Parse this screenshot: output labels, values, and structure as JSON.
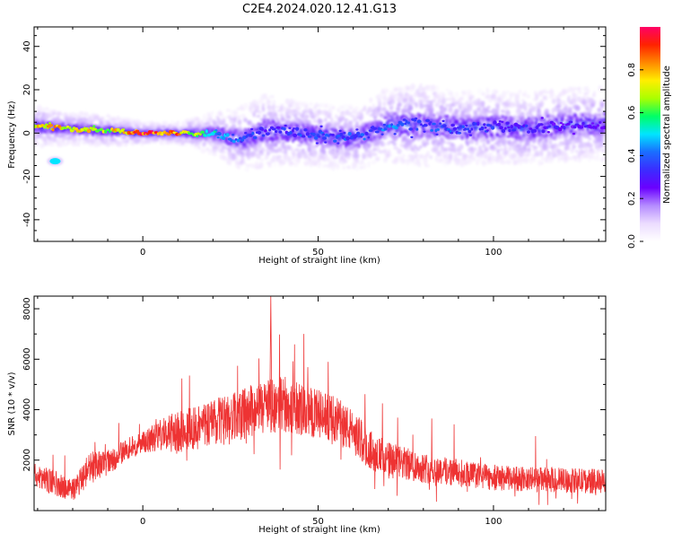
{
  "figure_title": "C2E4.2024.020.12.41.G13",
  "colors": {
    "snr_line": "#ee3333",
    "colormap": [
      "#ffffff",
      "#ecdcff",
      "#b58cff",
      "#6a00ff",
      "#3b2cff",
      "#1a6dff",
      "#00e5ff",
      "#00ff66",
      "#aaff00",
      "#ffee00",
      "#ff8800",
      "#ff2200",
      "#ff0066"
    ]
  },
  "chart_data": [
    {
      "type": "heatmap",
      "title": "",
      "xlabel": "Height of straight line (km)",
      "ylabel": "Frequency (Hz)",
      "xlim": [
        -31,
        132
      ],
      "ylim": [
        -50,
        49
      ],
      "xticks": [
        0,
        50,
        100
      ],
      "yticks": [
        -40,
        -20,
        0,
        20,
        40
      ],
      "colorbar": {
        "label": "Normalized spectral amplitude",
        "range": [
          0.0,
          1.0
        ],
        "ticks": [
          0.0,
          0.2,
          0.4,
          0.6,
          0.8
        ]
      },
      "ridge": {
        "x": [
          -31,
          -20,
          -10,
          0,
          10,
          20,
          28,
          35,
          45,
          55,
          62,
          70,
          80,
          90,
          100,
          110,
          120,
          132
        ],
        "frequency": [
          3,
          2,
          1,
          0,
          0,
          0,
          -3,
          1,
          0,
          -2,
          -2,
          4,
          4,
          2,
          3,
          2,
          4,
          4
        ],
        "peak_amplitude": [
          0.85,
          0.8,
          0.75,
          1.0,
          0.9,
          0.55,
          0.4,
          0.35,
          0.4,
          0.4,
          0.4,
          0.45,
          0.4,
          0.4,
          0.35,
          0.35,
          0.3,
          0.3
        ],
        "spread_hz": [
          4,
          3,
          3,
          2,
          2,
          4,
          6,
          7,
          6,
          6,
          6,
          7,
          8,
          7,
          7,
          7,
          7,
          7
        ]
      },
      "blobs": [
        {
          "x": -25,
          "frequency": -13,
          "amplitude": 0.5
        }
      ]
    },
    {
      "type": "line",
      "title": "",
      "xlabel": "Height of straight line (km)",
      "ylabel": "SNR (10 * v/v)",
      "xlim": [
        -31,
        132
      ],
      "ylim": [
        0,
        8500
      ],
      "xticks": [
        0,
        50,
        100
      ],
      "yticks": [
        2000,
        4000,
        6000,
        8000
      ],
      "series": [
        {
          "x": [
            -31,
            -25,
            -20,
            -15,
            -10,
            -5,
            0,
            5,
            10,
            15,
            20,
            25,
            30,
            35,
            40,
            45,
            50,
            55,
            60,
            65,
            70,
            80,
            90,
            100,
            110,
            120,
            132
          ],
          "y": [
            1400,
            1100,
            800,
            1700,
            1900,
            2400,
            2700,
            3000,
            3100,
            3300,
            3500,
            3600,
            3900,
            4100,
            4200,
            4000,
            3800,
            3600,
            3100,
            2400,
            2000,
            1700,
            1500,
            1300,
            1250,
            1200,
            1150
          ],
          "noise": [
            900,
            900,
            800,
            1200,
            900,
            800,
            800,
            1100,
            1600,
            1700,
            1700,
            1800,
            1900,
            2000,
            2000,
            1900,
            1800,
            1700,
            1600,
            1400,
            1300,
            1100,
            1000,
            900,
            900,
            900,
            900
          ]
        }
      ]
    }
  ]
}
